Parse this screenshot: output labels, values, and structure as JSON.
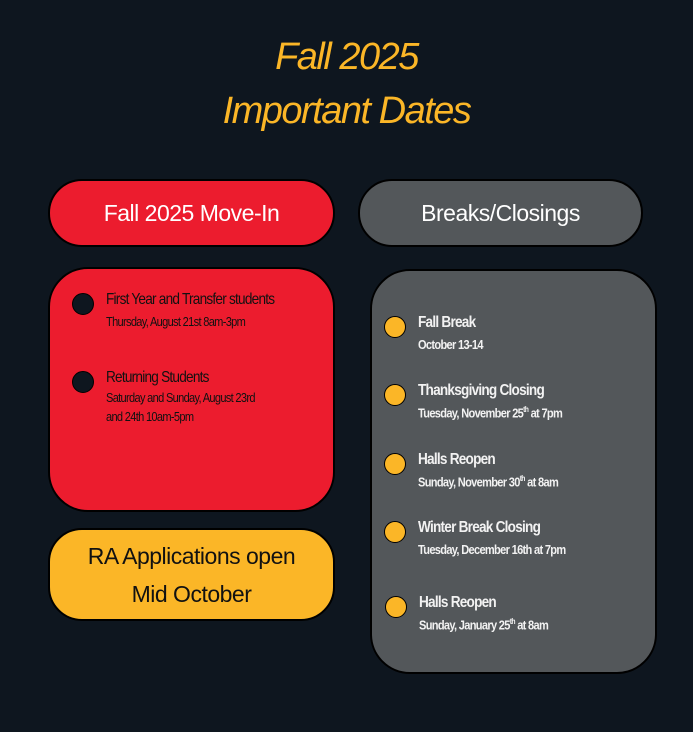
{
  "title": {
    "line1": "Fall 2025",
    "line2": "Important Dates"
  },
  "colors": {
    "background": "#0e161f",
    "red": "#ec1c2e",
    "yellow": "#fbb627",
    "gray": "#53575a"
  },
  "move_in": {
    "header": "Fall 2025 Move-In",
    "items": [
      {
        "title": "First Year and Transfer students",
        "detail": "Thursday, August 21st 8am-3pm"
      },
      {
        "title": "Returning Students",
        "detail": "Saturday and Sunday, August 23rd",
        "detail2": "and 24th 10am-5pm"
      }
    ]
  },
  "ra": {
    "line1": "RA Applications open",
    "line2": "Mid October"
  },
  "breaks": {
    "header": "Breaks/Closings",
    "items": [
      {
        "title": "Fall Break",
        "detail": "October 13-14"
      },
      {
        "title": "Thanksgiving Closing",
        "detail": "Tuesday, November 25",
        "sup": "th",
        "after": " at 7pm"
      },
      {
        "title": "Halls Reopen",
        "detail": "Sunday, November 30",
        "sup": "th",
        "after": " at 8am"
      },
      {
        "title": "Winter Break Closing",
        "detail": "Tuesday, December 16th at 7pm"
      },
      {
        "title": "Halls Reopen",
        "detail": "Sunday, January 25",
        "sup": "th",
        "after": " at 8am"
      }
    ]
  }
}
